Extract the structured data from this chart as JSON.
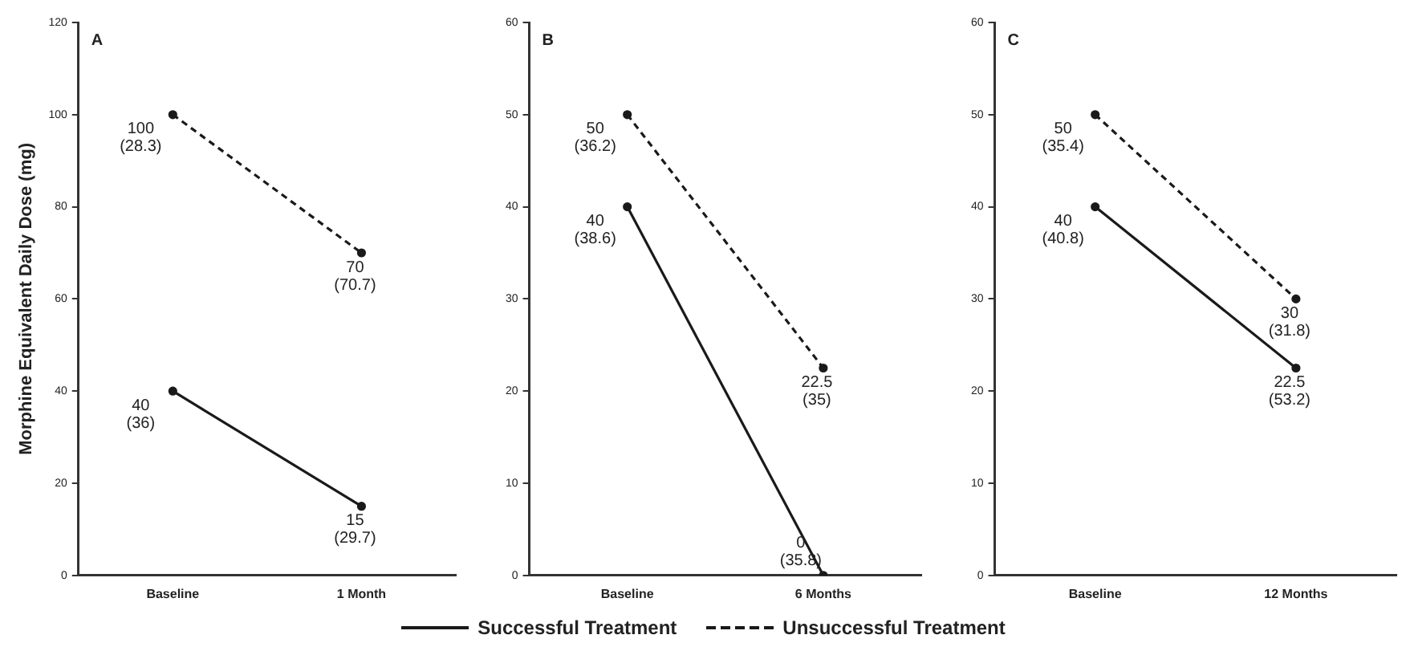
{
  "chart_data": [
    {
      "type": "line",
      "title": "A",
      "ylabel": "Morphine Equivalent Daily Dose (mg)",
      "categories": [
        "Baseline",
        "1 Month"
      ],
      "ylim": [
        0,
        120
      ],
      "yticks": [
        0,
        20,
        40,
        60,
        80,
        100,
        120
      ],
      "grid": false,
      "legend": "bottom",
      "marker": "circle",
      "series": [
        {
          "name": "Successful Treatment",
          "color": "#1a1a1a",
          "line_style": "solid",
          "values": [
            40,
            15
          ],
          "value_labels": [
            "40 (36)",
            "15 (29.7)"
          ]
        },
        {
          "name": "Unsuccessful Treatment",
          "color": "#1a1a1a",
          "line_style": "dashed",
          "values": [
            100,
            70
          ],
          "value_labels": [
            "100 (28.3)",
            "70 (70.7)"
          ]
        }
      ]
    },
    {
      "type": "line",
      "title": "B",
      "categories": [
        "Baseline",
        "6 Months"
      ],
      "ylim": [
        0,
        60
      ],
      "yticks": [
        0,
        10,
        20,
        30,
        40,
        50,
        60
      ],
      "grid": false,
      "marker": "circle",
      "series": [
        {
          "color": "#1a1a1a",
          "line_style": "solid",
          "values": [
            40,
            0
          ],
          "value_labels": [
            "40 (38.6)",
            "0 (35.8)"
          ]
        },
        {
          "color": "#1a1a1a",
          "line_style": "dashed",
          "values": [
            50,
            22.5
          ],
          "value_labels": [
            "50 (36.2)",
            "22.5 (35)"
          ]
        }
      ]
    },
    {
      "type": "line",
      "title": "C",
      "categories": [
        "Baseline",
        "12 Months"
      ],
      "ylim": [
        0,
        60
      ],
      "yticks": [
        0,
        10,
        20,
        30,
        40,
        50,
        60
      ],
      "grid": false,
      "marker": "circle",
      "series": [
        {
          "color": "#1a1a1a",
          "line_style": "solid",
          "values": [
            40,
            22.5
          ],
          "value_labels": [
            "40 (40.8)",
            "22.5 (53.2)"
          ]
        },
        {
          "color": "#1a1a1a",
          "line_style": "dashed",
          "values": [
            50,
            30
          ],
          "value_labels": [
            "50 (35.4)",
            "30 (31.8)"
          ]
        }
      ]
    }
  ]
}
